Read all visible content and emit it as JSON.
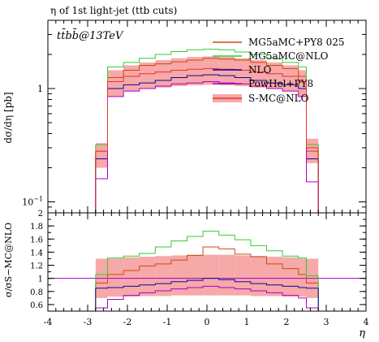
{
  "chart_data": {
    "type": "line",
    "title": "η of 1st light-jet (ttb cuts)",
    "process_label": "tt̄bb̄@13TeV",
    "xlabel": "η",
    "ylabel_main": "dσ/dη [pb]",
    "ylabel_ratio": "σ/σS−MC@NLO",
    "xlim": [
      -4,
      4
    ],
    "ylim_main": [
      0.08,
      4.0
    ],
    "yscale_main": "log",
    "ylim_ratio": [
      0.5,
      2.0
    ],
    "x_ticks": [
      {
        "value": -4,
        "label": "-4"
      },
      {
        "value": -3,
        "label": "-3"
      },
      {
        "value": -2,
        "label": "-2"
      },
      {
        "value": -1,
        "label": "-1"
      },
      {
        "value": 0,
        "label": "0"
      },
      {
        "value": 1,
        "label": "1"
      },
      {
        "value": 2,
        "label": "2"
      },
      {
        "value": 3,
        "label": "3"
      },
      {
        "value": 4,
        "label": "4"
      }
    ],
    "y_ticks_main": [
      {
        "value": 1,
        "label": "1"
      },
      {
        "value": 0.1,
        "label": "10−1"
      }
    ],
    "y_ticks_ratio": [
      {
        "value": 0.6,
        "label": "0.6"
      },
      {
        "value": 0.8,
        "label": "0.8"
      },
      {
        "value": 1.0,
        "label": "1"
      },
      {
        "value": 1.2,
        "label": "1.2"
      },
      {
        "value": 1.4,
        "label": "1.4"
      },
      {
        "value": 1.6,
        "label": "1.6"
      },
      {
        "value": 1.8,
        "label": "1.8"
      },
      {
        "value": 2.0,
        "label": "2"
      }
    ],
    "bin_edges": [
      -2.8,
      -2.5,
      -2.1,
      -1.7,
      -1.3,
      -0.9,
      -0.5,
      -0.1,
      0.3,
      0.7,
      1.1,
      1.5,
      1.9,
      2.3,
      2.5,
      2.8
    ],
    "legend_position": "top-right",
    "series": [
      {
        "name": "MG5aMC+PY8 025",
        "color": "#cc4a0a",
        "values": [
          0.28,
          1.25,
          1.45,
          1.6,
          1.65,
          1.72,
          1.78,
          1.85,
          1.82,
          1.78,
          1.7,
          1.6,
          1.5,
          1.28,
          0.28
        ],
        "ratio": [
          0.93,
          1.06,
          1.12,
          1.19,
          1.22,
          1.28,
          1.35,
          1.48,
          1.45,
          1.37,
          1.33,
          1.22,
          1.15,
          1.06,
          0.93
        ]
      },
      {
        "name": "MG5aMC@NLO",
        "color": "#33cc33",
        "values": [
          0.32,
          1.55,
          1.7,
          1.85,
          2.0,
          2.12,
          2.2,
          2.22,
          2.2,
          2.1,
          2.0,
          1.85,
          1.7,
          1.55,
          0.32
        ],
        "ratio": [
          1.06,
          1.31,
          1.34,
          1.38,
          1.48,
          1.57,
          1.64,
          1.72,
          1.66,
          1.59,
          1.5,
          1.42,
          1.34,
          1.31,
          1.04
        ]
      },
      {
        "name": "NLO",
        "color": "#0a0a99",
        "values": [
          0.24,
          1.0,
          1.08,
          1.12,
          1.18,
          1.25,
          1.3,
          1.32,
          1.3,
          1.25,
          1.18,
          1.12,
          1.08,
          1.0,
          0.24
        ],
        "ratio": [
          0.85,
          0.86,
          0.88,
          0.9,
          0.92,
          0.95,
          0.97,
          1.0,
          0.98,
          0.95,
          0.92,
          0.9,
          0.88,
          0.86,
          0.85
        ]
      },
      {
        "name": "PowHel+PY8",
        "color": "#aa00cc",
        "values": [
          0.16,
          0.85,
          0.95,
          1.0,
          1.05,
          1.1,
          1.12,
          1.15,
          1.12,
          1.1,
          1.05,
          1.0,
          0.95,
          0.85,
          0.15
        ],
        "ratio": [
          0.55,
          0.68,
          0.74,
          0.78,
          0.81,
          0.84,
          0.86,
          0.88,
          0.86,
          0.84,
          0.81,
          0.78,
          0.74,
          0.7,
          0.55
        ]
      },
      {
        "name": "S-MC@NLO",
        "color": "#e8322f",
        "band_color": "#f7a8a8",
        "values": [
          0.28,
          1.15,
          1.28,
          1.35,
          1.4,
          1.45,
          1.48,
          1.5,
          1.48,
          1.45,
          1.4,
          1.35,
          1.28,
          1.15,
          0.3
        ],
        "band_low": [
          0.2,
          0.85,
          0.95,
          1.0,
          1.02,
          1.05,
          1.07,
          1.08,
          1.07,
          1.05,
          1.02,
          1.0,
          0.95,
          0.85,
          0.22
        ],
        "band_high": [
          0.33,
          1.45,
          1.6,
          1.7,
          1.78,
          1.85,
          1.9,
          1.92,
          1.9,
          1.85,
          1.78,
          1.7,
          1.6,
          1.45,
          0.36
        ],
        "ratio": [
          1.0,
          1.0,
          1.0,
          1.0,
          1.0,
          1.0,
          1.0,
          1.0,
          1.0,
          1.0,
          1.0,
          1.0,
          1.0,
          1.0,
          1.0
        ],
        "ratio_band_low": [
          0.7,
          0.72,
          0.72,
          0.73,
          0.73,
          0.74,
          0.74,
          0.74,
          0.74,
          0.74,
          0.73,
          0.73,
          0.72,
          0.72,
          0.7
        ],
        "ratio_band_high": [
          1.3,
          1.3,
          1.32,
          1.33,
          1.34,
          1.35,
          1.36,
          1.36,
          1.36,
          1.35,
          1.34,
          1.33,
          1.32,
          1.3,
          1.3
        ]
      }
    ]
  }
}
